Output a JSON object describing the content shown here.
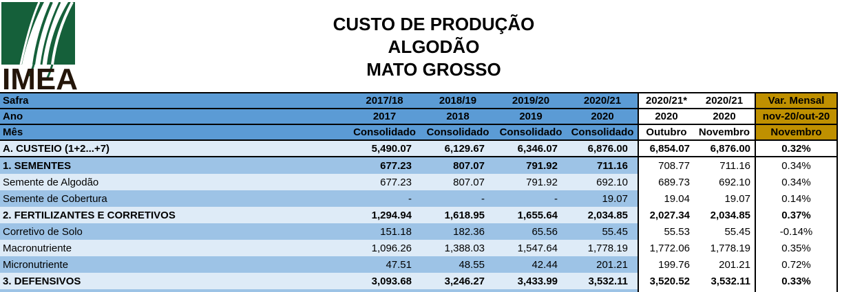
{
  "logo": {
    "text": "IMEA"
  },
  "title": {
    "lines": [
      "CUSTO DE PRODUÇÃO",
      "ALGODÃO",
      "MATO GROSSO"
    ]
  },
  "table": {
    "header_rows": [
      {
        "label": "Safra",
        "blue": [
          "2017/18",
          "2018/19",
          "2019/20",
          "2020/21"
        ],
        "white": [
          "2020/21*",
          "2020/21"
        ],
        "var": "Var. Mensal"
      },
      {
        "label": "Ano",
        "blue": [
          "2017",
          "2018",
          "2019",
          "2020"
        ],
        "white": [
          "2020",
          "2020"
        ],
        "var": "nov-20/out-20"
      },
      {
        "label": "Mês",
        "blue": [
          "Consolidado",
          "Consolidado",
          "Consolidado",
          "Consolidado"
        ],
        "white": [
          "Outubro",
          "Novembro"
        ],
        "var": "Novembro"
      }
    ],
    "rows": [
      {
        "label": "A. CUSTEIO (1+2...+7)",
        "blue": [
          "5,490.07",
          "6,129.67",
          "6,346.07",
          "6,876.00"
        ],
        "white": [
          "6,854.07",
          "6,876.00"
        ],
        "var": "0.32%",
        "bold": true,
        "white_values_bold": true,
        "shade": "light",
        "divider": true
      },
      {
        "label": "1. SEMENTES",
        "blue": [
          "677.23",
          "807.07",
          "791.92",
          "711.16"
        ],
        "white": [
          "708.77",
          "711.16"
        ],
        "var": "0.34%",
        "bold": true,
        "white_values_bold": false,
        "shade": "medium",
        "divider": false
      },
      {
        "label": "Semente de Algodão",
        "blue": [
          "677.23",
          "807.07",
          "791.92",
          "692.10"
        ],
        "white": [
          "689.73",
          "692.10"
        ],
        "var": "0.34%",
        "bold": false,
        "white_values_bold": false,
        "shade": "light",
        "divider": false
      },
      {
        "label": "Semente de Cobertura",
        "blue": [
          "-",
          "-",
          "-",
          "19.07"
        ],
        "white": [
          "19.04",
          "19.07"
        ],
        "var": "0.14%",
        "bold": false,
        "white_values_bold": false,
        "shade": "medium",
        "divider": false
      },
      {
        "label": "2. FERTILIZANTES E CORRETIVOS",
        "blue": [
          "1,294.94",
          "1,618.95",
          "1,655.64",
          "2,034.85"
        ],
        "white": [
          "2,027.34",
          "2,034.85"
        ],
        "var": "0.37%",
        "bold": true,
        "white_values_bold": true,
        "shade": "light",
        "divider": false
      },
      {
        "label": "Corretivo de Solo",
        "blue": [
          "151.18",
          "182.36",
          "65.56",
          "55.45"
        ],
        "white": [
          "55.53",
          "55.45"
        ],
        "var": "-0.14%",
        "bold": false,
        "white_values_bold": false,
        "shade": "medium",
        "divider": false
      },
      {
        "label": "Macronutriente",
        "blue": [
          "1,096.26",
          "1,388.03",
          "1,547.64",
          "1,778.19"
        ],
        "white": [
          "1,772.06",
          "1,778.19"
        ],
        "var": "0.35%",
        "bold": false,
        "white_values_bold": false,
        "shade": "light",
        "divider": false
      },
      {
        "label": "Micronutriente",
        "blue": [
          "47.51",
          "48.55",
          "42.44",
          "201.21"
        ],
        "white": [
          "199.76",
          "201.21"
        ],
        "var": "0.72%",
        "bold": false,
        "white_values_bold": false,
        "shade": "medium",
        "divider": false
      },
      {
        "label": "3. DEFENSIVOS",
        "blue": [
          "3,093.68",
          "3,246.27",
          "3,433.99",
          "3,532.11"
        ],
        "white": [
          "3,520.52",
          "3,532.11"
        ],
        "var": "0.33%",
        "bold": true,
        "white_values_bold": true,
        "shade": "light",
        "divider": false
      }
    ]
  },
  "colors": {
    "header_blue": "#5B9BD5",
    "row_light": "#DEEBF7",
    "row_medium": "#9DC3E6",
    "accent_gold": "#BF9000",
    "logo_green": "#15603A",
    "logo_letters": "#241509",
    "text": "#000000"
  }
}
